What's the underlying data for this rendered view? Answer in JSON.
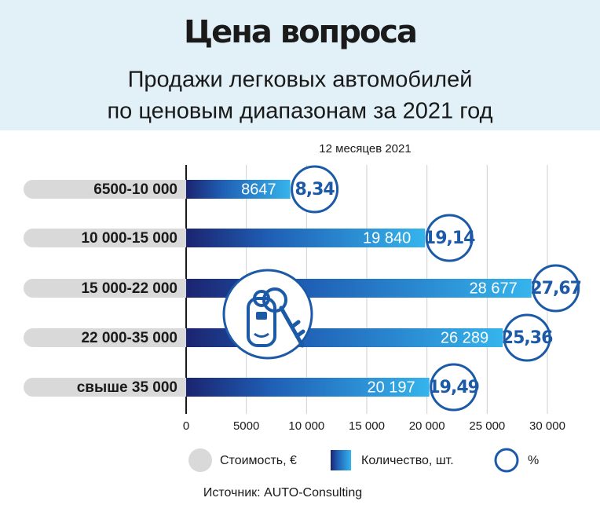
{
  "chart_data": {
    "type": "bar",
    "title": "Цена вопроса",
    "subtitle": [
      "Продажи легковых автомобилей",
      "по ценовым диапазонам за 2021 год"
    ],
    "period": "12 месяцев 2021",
    "categories": [
      "6500-10 000",
      "10 000-15 000",
      "15 000-22 000",
      "22 000-35 000",
      "свыше 35 000"
    ],
    "category_legend": "Стоимость, €",
    "series": [
      {
        "name": "Количество, шт.",
        "color": "#2a9ee0",
        "values": [
          8647,
          19840,
          28677,
          26289,
          20197
        ],
        "value_labels": [
          "8647",
          "19 840",
          "28 677",
          "26 289",
          "20 197"
        ]
      },
      {
        "name": "%",
        "color": "#1c5aa8",
        "values": [
          8.34,
          19.14,
          27.67,
          25.36,
          19.49
        ],
        "value_labels": [
          "8,34",
          "19,14",
          "27,67",
          "25,36",
          "19,49"
        ]
      }
    ],
    "xlim": [
      0,
      30000
    ],
    "xticks": [
      0,
      5000,
      {
        "value": 10000,
        "label": "10 000"
      },
      {
        "value": 15000,
        "label": "15 000"
      },
      {
        "value": 20000,
        "label": "20 000"
      },
      {
        "value": 25000,
        "label": "25 000"
      },
      {
        "value": 30000,
        "label": "30 000"
      }
    ],
    "grid": true,
    "source": "Источник: AUTO-Consulting"
  }
}
